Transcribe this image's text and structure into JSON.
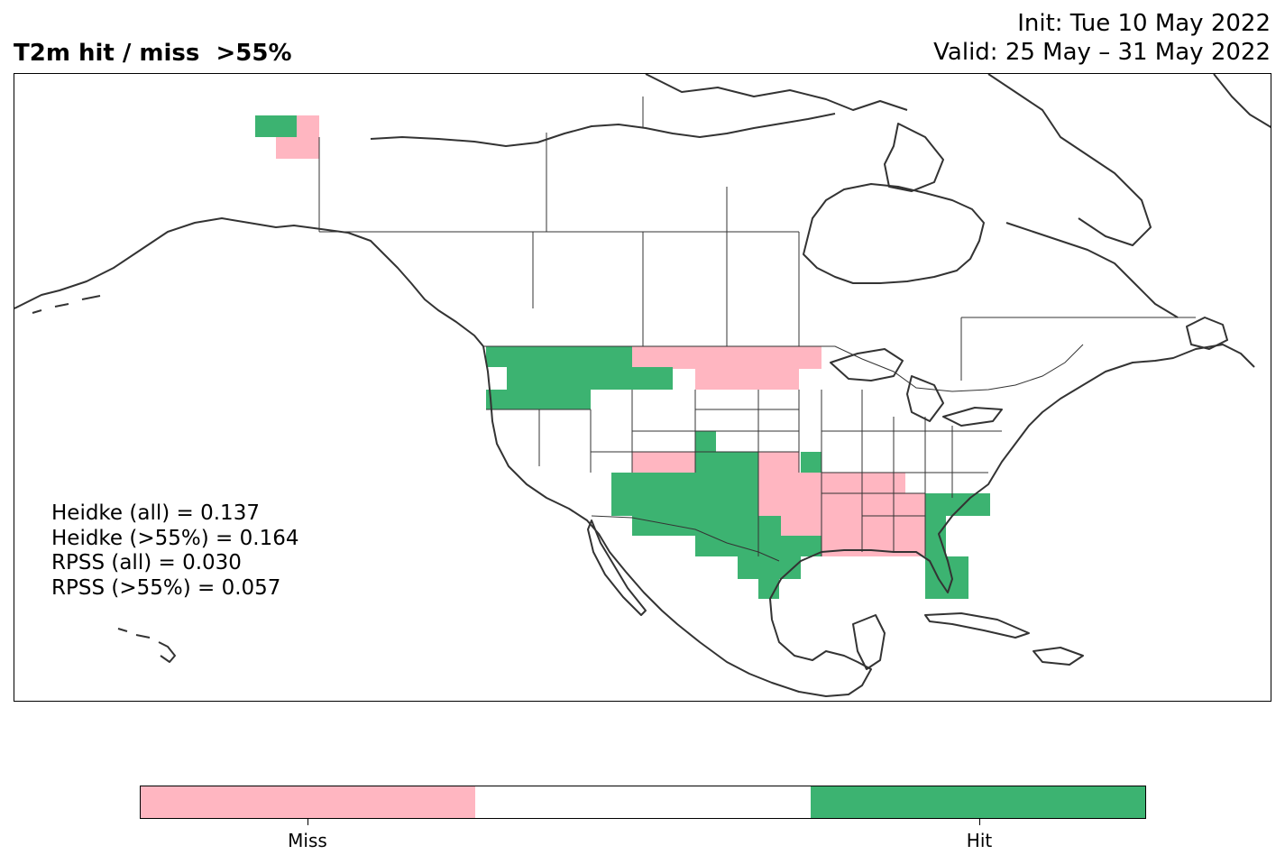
{
  "title": "T2m hit / miss  >55%",
  "init_line": "Init: Tue 10 May 2022",
  "valid_line": "Valid: 25 May – 31 May 2022",
  "scores": [
    "Heidke (all) = 0.137",
    "Heidke (>55%) = 0.164",
    "RPSS (all) = 0.030",
    "RPSS (>55%) = 0.057"
  ],
  "legend": {
    "items": [
      {
        "label": "Miss",
        "color": "#ffb6c1"
      },
      {
        "label": "",
        "color": "#ffffff"
      },
      {
        "label": "Hit",
        "color": "#3cb371"
      }
    ]
  },
  "colors": {
    "miss": "#ffb6c1",
    "hit": "#3cb371",
    "coastline": "#333333"
  }
}
